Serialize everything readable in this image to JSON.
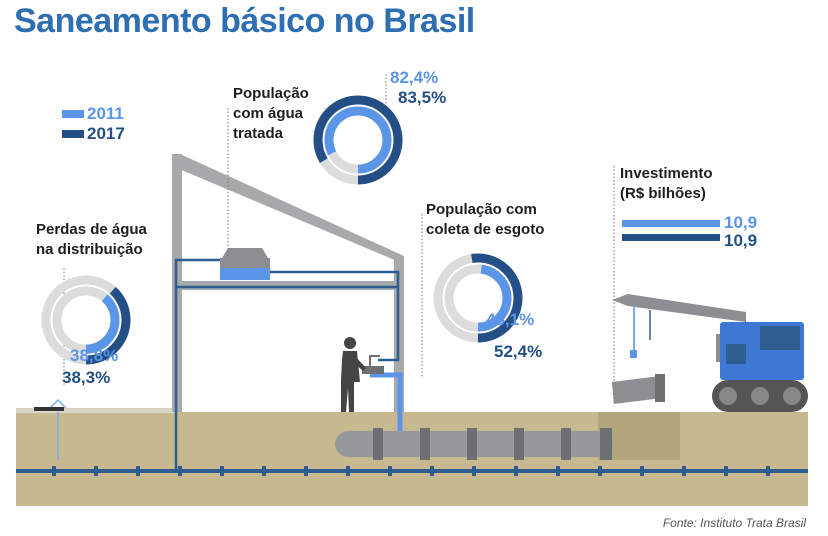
{
  "title": "Saneamento básico no Brasil",
  "legend": [
    {
      "label": "2011",
      "color": "#5b95e8"
    },
    {
      "label": "2017",
      "color": "#244f86"
    }
  ],
  "colors": {
    "c2011": "#5b95e8",
    "c2017": "#244f86",
    "track": "#dcdcdc",
    "ground": "#c7b88f",
    "pipe": "#2e5d90",
    "structure": "#a7a9ab"
  },
  "indicators": {
    "perdas": {
      "label_line1": "Perdas de água",
      "label_line2": "na distribuição",
      "v2011": "38,8%",
      "v2017": "38,3%",
      "pct2011": 38.8,
      "pct2017": 38.3
    },
    "agua": {
      "label_line1": "População",
      "label_line2": "com água",
      "label_line3": "tratada",
      "v2011": "82,4%",
      "v2017": "83,5%",
      "pct2011": 82.4,
      "pct2017": 83.5
    },
    "esgoto": {
      "label_line1": "População com",
      "label_line2": "coleta de esgoto",
      "v2011": "48,1%",
      "v2017": "52,4%",
      "pct2011": 48.1,
      "pct2017": 52.4
    },
    "investimento": {
      "label_line1": "Investimento",
      "label_line2": "(R$ bilhões)",
      "v2011": "10,9",
      "v2017": "10,9"
    }
  },
  "source": "Fonte: Instituto Trata Brasil"
}
